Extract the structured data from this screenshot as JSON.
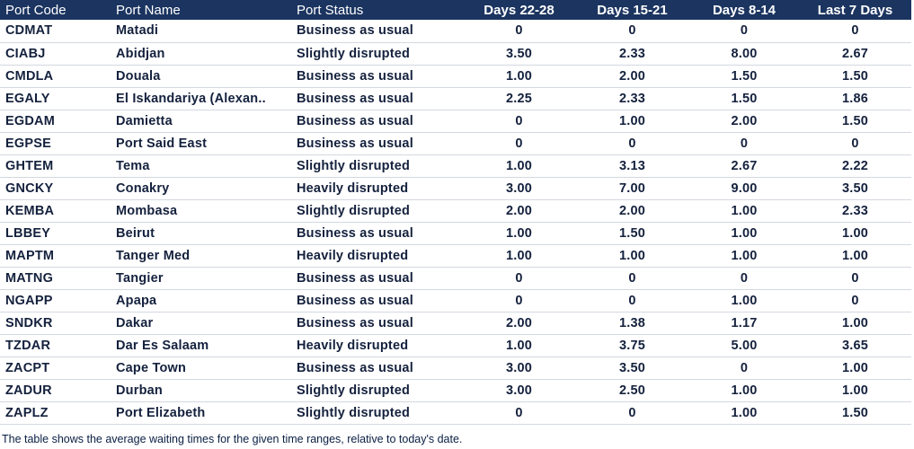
{
  "table": {
    "headers": {
      "port_code": "Port Code",
      "port_name": "Port Name",
      "port_status": "Port Status",
      "days_22_28": "Days 22-28",
      "days_15_21": "Days 15-21",
      "days_8_14": "Days 8-14",
      "last_7_days": "Last 7 Days"
    },
    "rows": [
      {
        "code": "CDMAT",
        "name": "Matadi",
        "status": "Business as usual",
        "d22": "0",
        "d15": "0",
        "d8": "0",
        "d7": "0"
      },
      {
        "code": "CIABJ",
        "name": "Abidjan",
        "status": "Slightly disrupted",
        "d22": "3.50",
        "d15": "2.33",
        "d8": "8.00",
        "d7": "2.67"
      },
      {
        "code": "CMDLA",
        "name": "Douala",
        "status": "Business as usual",
        "d22": "1.00",
        "d15": "2.00",
        "d8": "1.50",
        "d7": "1.50"
      },
      {
        "code": "EGALY",
        "name": "El Iskandariya (Alexan..",
        "status": "Business as usual",
        "d22": "2.25",
        "d15": "2.33",
        "d8": "1.50",
        "d7": "1.86"
      },
      {
        "code": "EGDAM",
        "name": "Damietta",
        "status": "Business as usual",
        "d22": "0",
        "d15": "1.00",
        "d8": "2.00",
        "d7": "1.50"
      },
      {
        "code": "EGPSE",
        "name": "Port Said East",
        "status": "Business as usual",
        "d22": "0",
        "d15": "0",
        "d8": "0",
        "d7": "0"
      },
      {
        "code": "GHTEM",
        "name": "Tema",
        "status": "Slightly disrupted",
        "d22": "1.00",
        "d15": "3.13",
        "d8": "2.67",
        "d7": "2.22"
      },
      {
        "code": "GNCKY",
        "name": "Conakry",
        "status": "Heavily disrupted",
        "d22": "3.00",
        "d15": "7.00",
        "d8": "9.00",
        "d7": "3.50"
      },
      {
        "code": "KEMBA",
        "name": "Mombasa",
        "status": "Slightly disrupted",
        "d22": "2.00",
        "d15": "2.00",
        "d8": "1.00",
        "d7": "2.33"
      },
      {
        "code": "LBBEY",
        "name": "Beirut",
        "status": "Business as usual",
        "d22": "1.00",
        "d15": "1.50",
        "d8": "1.00",
        "d7": "1.00"
      },
      {
        "code": "MAPTM",
        "name": "Tanger Med",
        "status": "Heavily disrupted",
        "d22": "1.00",
        "d15": "1.00",
        "d8": "1.00",
        "d7": "1.00"
      },
      {
        "code": "MATNG",
        "name": "Tangier",
        "status": "Business as usual",
        "d22": "0",
        "d15": "0",
        "d8": "0",
        "d7": "0"
      },
      {
        "code": "NGAPP",
        "name": "Apapa",
        "status": "Business as usual",
        "d22": "0",
        "d15": "0",
        "d8": "1.00",
        "d7": "0"
      },
      {
        "code": "SNDKR",
        "name": "Dakar",
        "status": "Business as usual",
        "d22": "2.00",
        "d15": "1.38",
        "d8": "1.17",
        "d7": "1.00"
      },
      {
        "code": "TZDAR",
        "name": "Dar Es Salaam",
        "status": "Heavily disrupted",
        "d22": "1.00",
        "d15": "3.75",
        "d8": "5.00",
        "d7": "3.65"
      },
      {
        "code": "ZACPT",
        "name": "Cape Town",
        "status": "Business as usual",
        "d22": "3.00",
        "d15": "3.50",
        "d8": "0",
        "d7": "1.00"
      },
      {
        "code": "ZADUR",
        "name": "Durban",
        "status": "Slightly disrupted",
        "d22": "3.00",
        "d15": "2.50",
        "d8": "1.00",
        "d7": "1.00"
      },
      {
        "code": "ZAPLZ",
        "name": "Port Elizabeth",
        "status": "Slightly disrupted",
        "d22": "0",
        "d15": "0",
        "d8": "1.00",
        "d7": "1.50"
      }
    ]
  },
  "footnote": "The table shows the average waiting times for the given time ranges, relative to today's date.",
  "colors": {
    "header_bg": "#1b3460",
    "header_text": "#ffffff",
    "body_text": "#14213d"
  }
}
